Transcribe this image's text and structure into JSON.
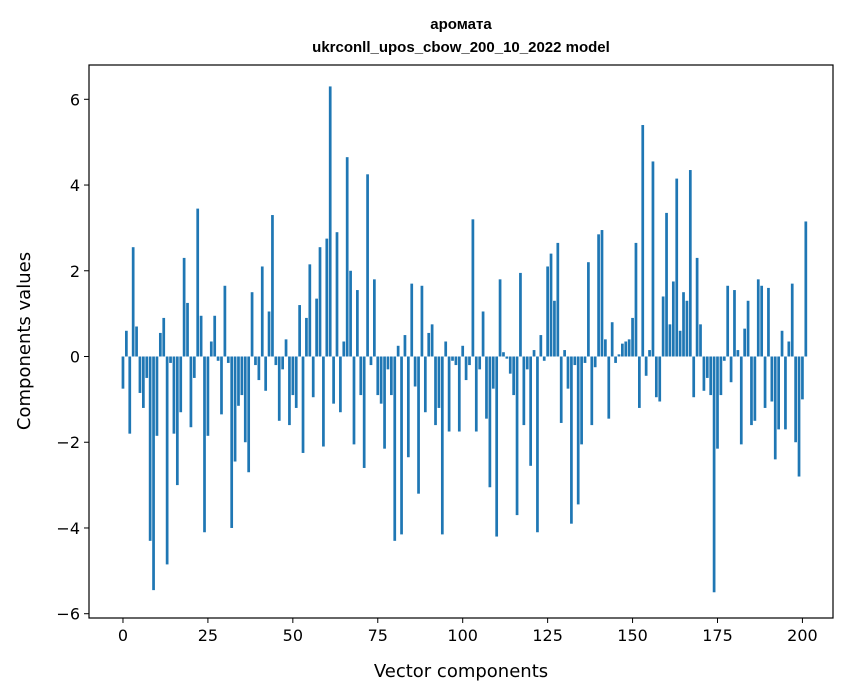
{
  "chart_data": {
    "type": "bar",
    "title_line1": "аромата",
    "title_line2": "ukrconll_upos_cbow_200_10_2022 model",
    "xlabel": "Vector components",
    "ylabel": "Components values",
    "xlim": [
      -10,
      209
    ],
    "ylim": [
      -6.1,
      6.8
    ],
    "xticks": [
      0,
      25,
      50,
      75,
      100,
      125,
      150,
      175,
      200
    ],
    "yticks": [
      -6,
      -4,
      -2,
      0,
      2,
      4,
      6
    ],
    "ytick_labels": [
      "−6",
      "−4",
      "−2",
      "0",
      "2",
      "4",
      "6"
    ],
    "bar_color": "#1f77b4",
    "grid": false,
    "values": [
      -0.75,
      0.6,
      -1.8,
      2.55,
      0.7,
      -0.85,
      -1.2,
      -0.5,
      -4.3,
      -5.45,
      -1.85,
      0.55,
      0.9,
      -4.85,
      -0.15,
      -1.8,
      -3.0,
      -1.3,
      2.3,
      1.25,
      -1.65,
      -0.5,
      3.45,
      0.95,
      -4.1,
      -1.85,
      0.35,
      0.95,
      -0.1,
      -1.35,
      1.65,
      -0.15,
      -4.0,
      -2.45,
      -1.15,
      -0.9,
      -2.0,
      -2.7,
      1.5,
      -0.2,
      -0.55,
      2.1,
      -0.8,
      1.05,
      3.3,
      -0.2,
      -1.5,
      -0.3,
      0.4,
      -1.6,
      -0.9,
      -1.2,
      1.2,
      -2.25,
      0.9,
      2.15,
      -0.95,
      1.35,
      2.55,
      -2.1,
      2.75,
      6.3,
      -1.1,
      2.9,
      -1.3,
      0.35,
      4.65,
      2.0,
      -2.05,
      1.55,
      -0.9,
      -2.6,
      4.25,
      -0.2,
      1.8,
      -0.9,
      -1.1,
      -2.15,
      -0.3,
      -0.9,
      -4.3,
      0.25,
      -4.15,
      0.5,
      -2.35,
      1.7,
      -0.7,
      -3.2,
      1.65,
      -1.3,
      0.55,
      0.75,
      -1.6,
      -1.2,
      -4.15,
      0.35,
      -1.75,
      -0.1,
      -0.2,
      -1.75,
      0.25,
      -0.55,
      -0.2,
      3.2,
      -1.75,
      -0.3,
      1.05,
      -1.45,
      -3.05,
      -0.75,
      -4.2,
      1.8,
      0.1,
      -0.05,
      -0.4,
      -0.9,
      -3.7,
      1.95,
      -1.6,
      -0.3,
      -2.55,
      0.15,
      -4.1,
      0.5,
      -0.1,
      2.1,
      2.4,
      1.3,
      2.65,
      -1.55,
      0.15,
      -0.75,
      -3.9,
      -0.2,
      -3.45,
      -2.05,
      -0.15,
      2.2,
      -1.6,
      -0.25,
      2.85,
      2.95,
      0.4,
      -1.45,
      0.8,
      -0.15,
      0.05,
      0.3,
      0.35,
      0.4,
      0.9,
      2.65,
      -1.2,
      5.4,
      -0.45,
      0.15,
      4.55,
      -0.95,
      -1.05,
      1.4,
      3.35,
      0.75,
      1.75,
      4.15,
      0.6,
      1.5,
      1.3,
      4.35,
      -0.95,
      2.3,
      0.75,
      -0.8,
      -0.5,
      -0.9,
      -5.5,
      -2.15,
      -0.9,
      -0.1,
      1.65,
      -0.6,
      1.55,
      0.15,
      -2.05,
      0.65,
      1.3,
      -1.6,
      -1.5,
      1.8,
      1.65,
      -1.2,
      1.6,
      -1.05,
      -2.4,
      -1.7,
      0.6,
      -1.7,
      0.35,
      1.7,
      -2.0,
      -2.8,
      -1.0,
      3.15
    ]
  }
}
